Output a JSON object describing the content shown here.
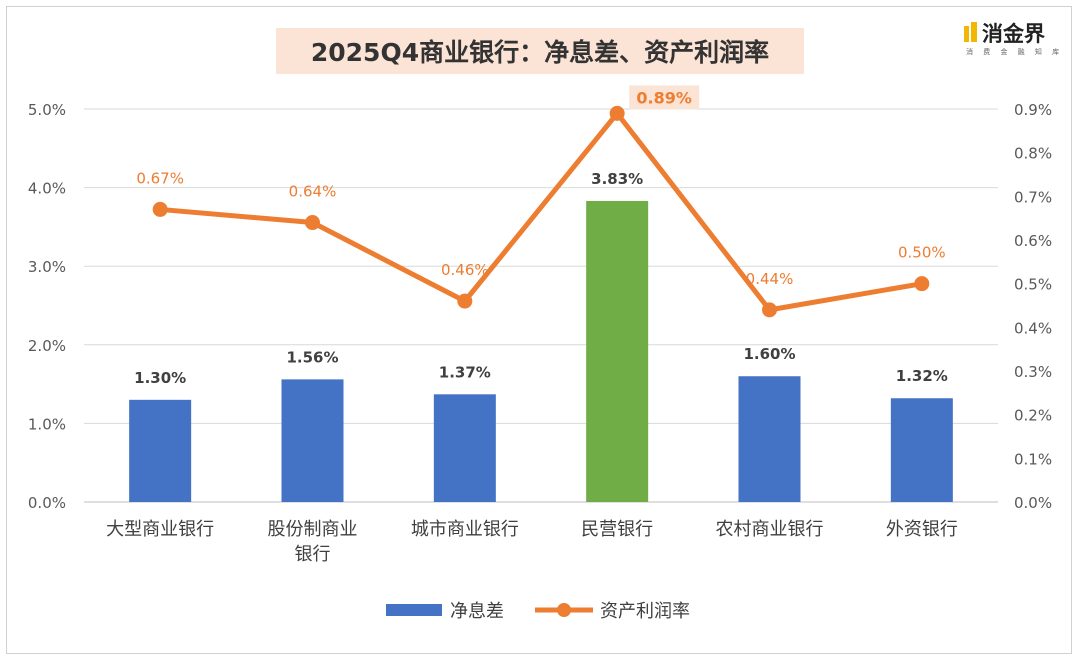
{
  "title": "2025Q4商业银行：净息差、资产利润率",
  "logo": {
    "name": "消金界",
    "subtitle": "消 费 金 融 知 库"
  },
  "chart_data": {
    "type": "bar",
    "title": "2025Q4商业银行：净息差、资产利润率",
    "categories": [
      "大型商业银行",
      "股份制商业银行",
      "城市商业银行",
      "民营银行",
      "农村商业银行",
      "外资银行"
    ],
    "category_lines": [
      [
        "大型商业银行"
      ],
      [
        "股份制商业",
        "银行"
      ],
      [
        "城市商业银行"
      ],
      [
        "民营银行"
      ],
      [
        "农村商业银行"
      ],
      [
        "外资银行"
      ]
    ],
    "series": [
      {
        "name": "净息差",
        "type": "bar",
        "axis": "left",
        "values": [
          1.3,
          1.56,
          1.37,
          3.83,
          1.6,
          1.32
        ],
        "labels": [
          "1.30%",
          "1.56%",
          "1.37%",
          "3.83%",
          "1.60%",
          "1.32%"
        ],
        "color": "#4472c4",
        "highlight_color": "#70ad47",
        "highlight_index": 3
      },
      {
        "name": "资产利润率",
        "type": "line",
        "axis": "right",
        "values": [
          0.67,
          0.64,
          0.46,
          0.89,
          0.44,
          0.5
        ],
        "labels": [
          "0.67%",
          "0.64%",
          "0.46%",
          "0.89%",
          "0.44%",
          "0.50%"
        ],
        "color": "#ed7d31"
      }
    ],
    "y_left": {
      "min": 0,
      "max": 5,
      "step": 1,
      "ticks": [
        "0.0%",
        "1.0%",
        "2.0%",
        "3.0%",
        "4.0%",
        "5.0%"
      ]
    },
    "y_right": {
      "min": 0,
      "max": 0.9,
      "step": 0.1,
      "ticks": [
        "0.0%",
        "0.1%",
        "0.2%",
        "0.3%",
        "0.4%",
        "0.5%",
        "0.6%",
        "0.7%",
        "0.8%",
        "0.9%"
      ]
    },
    "grid": true,
    "legend": "bottom"
  }
}
